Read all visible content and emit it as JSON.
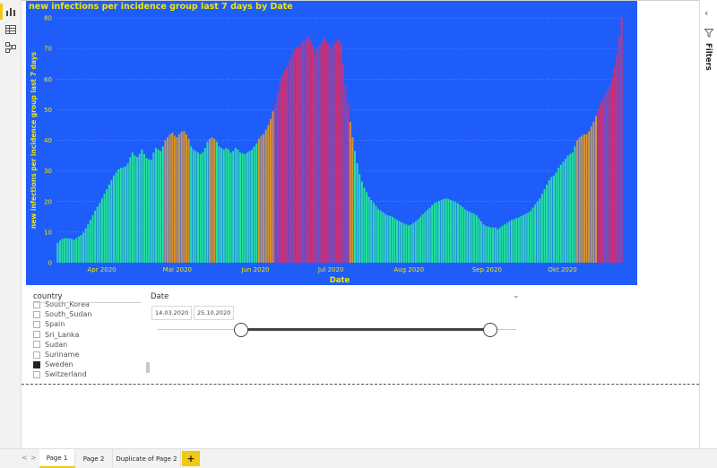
{
  "left_rail": {
    "icons": [
      "report-view-icon",
      "data-view-icon",
      "model-view-icon"
    ]
  },
  "filters_pane": {
    "label": "Filters"
  },
  "chart_data": {
    "type": "bar",
    "title": "new infections per incidence group last 7 days by Date",
    "xlabel": "Date",
    "ylabel": "new infections per incidence group last 7 days",
    "ylim": [
      0,
      80
    ],
    "yticks": [
      0,
      10,
      20,
      30,
      40,
      50,
      60,
      70,
      80
    ],
    "x_start": "2020-03-14",
    "x_end": "2020-10-25",
    "xtick_labels": [
      {
        "label": "Apr 2020",
        "date": "2020-04-01"
      },
      {
        "label": "Mai 2020",
        "date": "2020-05-01"
      },
      {
        "label": "Jun 2020",
        "date": "2020-06-01"
      },
      {
        "label": "Jul 2020",
        "date": "2020-07-01"
      },
      {
        "label": "Aug 2020",
        "date": "2020-08-01"
      },
      {
        "label": "Sep 2020",
        "date": "2020-09-01"
      },
      {
        "label": "Okt 2020",
        "date": "2020-10-01"
      }
    ],
    "grid": true,
    "colors": {
      "background": "#1f5dfb",
      "low": "#27e0a0",
      "mid": "#d9952f",
      "high": "#c8337b",
      "title": "#f2e600",
      "axis_text": "#f2e600"
    },
    "values": [
      6.5,
      7.2,
      7.8,
      8.0,
      8.0,
      7.9,
      7.8,
      7.5,
      8.0,
      8.5,
      9.0,
      9.8,
      11.2,
      12.5,
      14.0,
      15.5,
      17.0,
      18.3,
      19.5,
      21.0,
      22.5,
      24.0,
      25.5,
      27.0,
      28.5,
      29.5,
      30.5,
      31.0,
      31.2,
      31.5,
      32.5,
      34.5,
      36.0,
      35.0,
      34.5,
      35.5,
      37.0,
      35.5,
      34.2,
      33.8,
      33.6,
      36.0,
      37.5,
      37.0,
      36.5,
      38.0,
      40.0,
      41.0,
      42.0,
      42.5,
      41.5,
      41.0,
      42.0,
      42.8,
      43.0,
      42.0,
      40.5,
      38.0,
      37.0,
      36.5,
      36.0,
      35.5,
      36.0,
      37.5,
      39.5,
      40.5,
      41.0,
      40.5,
      39.5,
      38.0,
      37.5,
      37.0,
      37.5,
      37.0,
      36.0,
      36.5,
      37.5,
      37.0,
      36.0,
      35.8,
      35.5,
      36.0,
      36.5,
      37.0,
      38.0,
      39.0,
      40.5,
      41.5,
      42.0,
      43.5,
      45.0,
      47.0,
      49.5,
      52.0,
      56.0,
      59.0,
      61.0,
      63.0,
      64.0,
      66.0,
      68.0,
      69.5,
      70.5,
      70.5,
      71.5,
      72.5,
      73.0,
      74.0,
      72.5,
      71.0,
      69.0,
      70.0,
      71.0,
      72.0,
      73.5,
      72.0,
      71.5,
      70.0,
      72.0,
      72.5,
      73.0,
      71.5,
      65.0,
      58.0,
      52.0,
      46.0,
      41.0,
      36.5,
      32.5,
      29.0,
      26.5,
      24.5,
      23.0,
      21.5,
      20.5,
      19.5,
      18.5,
      17.5,
      17.0,
      16.5,
      16.0,
      15.5,
      15.3,
      15.0,
      14.5,
      14.0,
      13.6,
      13.2,
      12.8,
      12.5,
      12.2,
      12.5,
      13.0,
      13.5,
      14.2,
      15.0,
      15.8,
      16.5,
      17.3,
      18.0,
      18.8,
      19.5,
      19.8,
      20.2,
      20.5,
      20.8,
      21.0,
      20.8,
      20.5,
      20.2,
      19.8,
      19.4,
      18.8,
      18.2,
      17.5,
      17.0,
      16.6,
      16.3,
      16.0,
      15.5,
      14.5,
      13.5,
      12.5,
      12.0,
      11.8,
      11.6,
      11.5,
      11.5,
      11.0,
      11.5,
      12.0,
      12.5,
      13.0,
      13.5,
      14.0,
      14.2,
      14.5,
      14.8,
      15.2,
      15.6,
      16.0,
      16.4,
      17.0,
      18.0,
      19.0,
      20.0,
      21.0,
      22.5,
      24.0,
      25.5,
      27.0,
      28.0,
      28.5,
      29.5,
      31.0,
      32.0,
      33.0,
      34.0,
      35.0,
      35.5,
      36.0,
      38.0,
      40.0,
      41.0,
      41.5,
      42.0,
      42.0,
      43.0,
      44.5,
      46.0,
      48.0,
      50.0,
      52.0,
      53.5,
      55.0,
      56.5,
      58.0,
      60.5,
      64.0,
      68.0,
      74.0,
      80.0
    ],
    "value_note_thresholds": {
      "mid": 40,
      "high": 50
    }
  },
  "country_slicer": {
    "header": "country",
    "items": [
      {
        "label": "South_Korea",
        "checked": false
      },
      {
        "label": "South_Sudan",
        "checked": false
      },
      {
        "label": "Spain",
        "checked": false
      },
      {
        "label": "Sri_Lanka",
        "checked": false
      },
      {
        "label": "Sudan",
        "checked": false
      },
      {
        "label": "Suriname",
        "checked": false
      },
      {
        "label": "Sweden",
        "checked": true
      },
      {
        "label": "Switzerland",
        "checked": false
      }
    ]
  },
  "date_slicer": {
    "header": "Date",
    "start": "14.03.2020",
    "end": "25.10.2020"
  },
  "tabs": {
    "items": [
      "Page 1",
      "Page 2",
      "Duplicate of Page 2"
    ],
    "active": 0,
    "add_label": "+",
    "prev": "<",
    "next": ">"
  }
}
